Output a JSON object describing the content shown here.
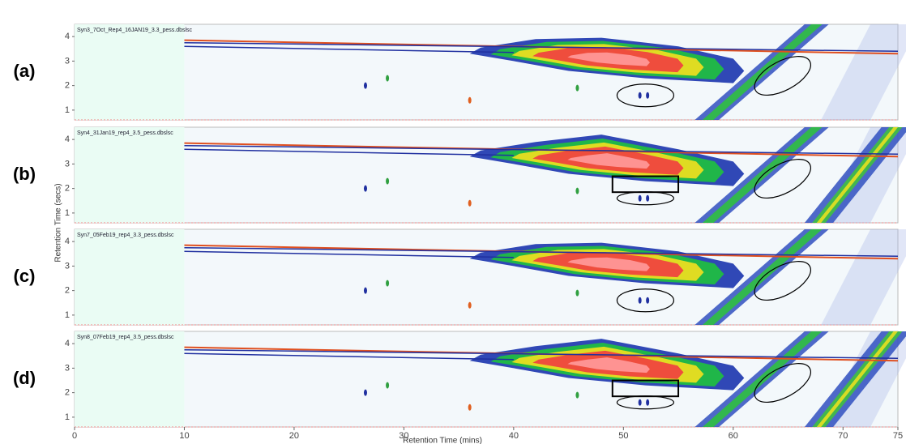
{
  "x_axis": {
    "label": "Retention Time (mins)",
    "lim": [
      0,
      75
    ],
    "ticks": [
      0,
      10,
      20,
      30,
      40,
      50,
      60,
      70,
      75
    ]
  },
  "y_axis": {
    "label": "Retention Time (secs)",
    "lim": [
      0.6,
      4.5
    ],
    "ticks": [
      1,
      2,
      3,
      4
    ]
  },
  "panels": [
    {
      "label": "(a)",
      "file": "Syn3_7Oct_Rep4_16JAN19_3.3_pess.dbslsc"
    },
    {
      "label": "(b)",
      "file": "Syn4_31Jan19_rep4_3.5_pess.dbslsc"
    },
    {
      "label": "(c)",
      "file": "Syn7_05Feb19_rep4_3.3_pess.dbslsc"
    },
    {
      "label": "(d)",
      "file": "Syn8_07Feb19_rep4_3.5_pess.dbslsc"
    }
  ]
}
